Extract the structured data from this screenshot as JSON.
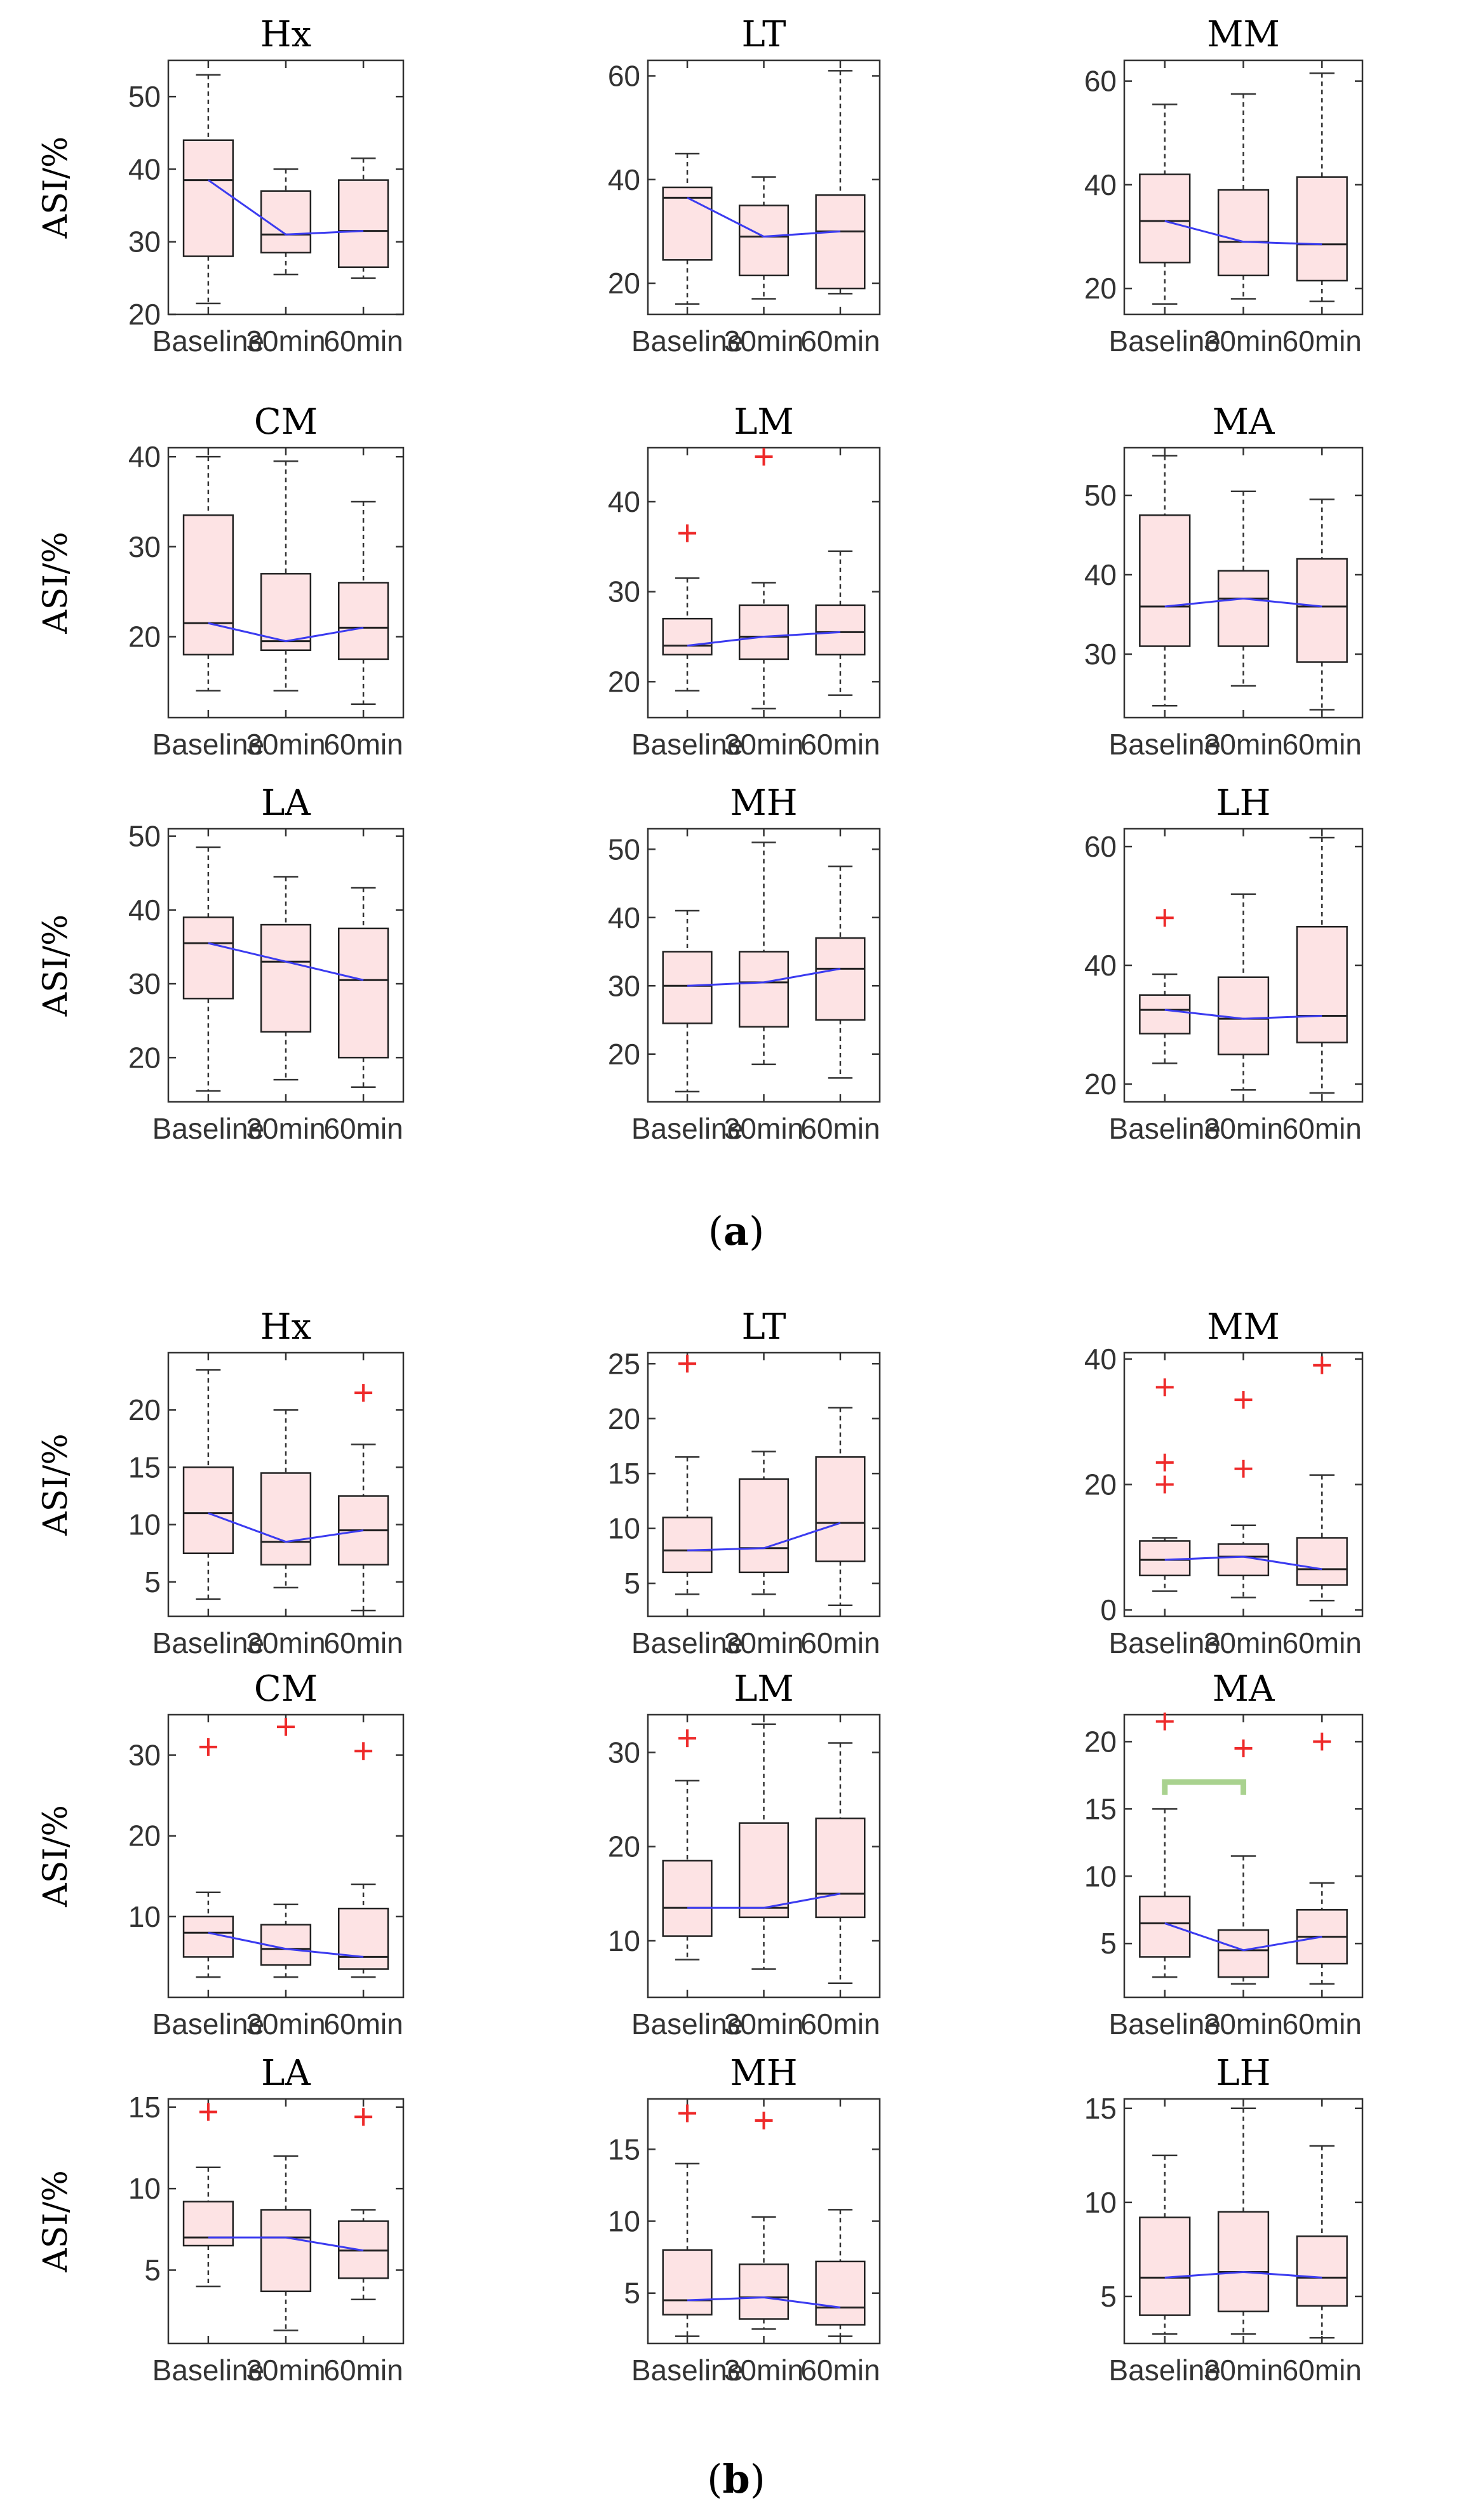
{
  "figure": {
    "caption_a_open": "(",
    "caption_a_letter": "a",
    "caption_a_close": ")",
    "caption_b_open": "(",
    "caption_b_letter": "b",
    "caption_b_close": ")"
  },
  "colors": {
    "box_fill": "#fde3e4",
    "box_edge": "#222222",
    "median_line": "#3b3bf0",
    "outlier": "#ee2a2a",
    "significance": "#a9d28f"
  },
  "chart_data": [
    {
      "type": "box",
      "panel": "a",
      "title": "Hx",
      "ylabel": "ASI/%",
      "categories": [
        "Baseline",
        "30min",
        "60min"
      ],
      "ylim": [
        20,
        55
      ],
      "yticks": [
        20,
        30,
        40,
        50
      ],
      "boxes": [
        {
          "whisker_low": 21.5,
          "q1": 28,
          "median": 38.5,
          "q3": 44,
          "whisker_high": 53,
          "outliers": []
        },
        {
          "whisker_low": 25.5,
          "q1": 28.5,
          "median": 31,
          "q3": 37,
          "whisker_high": 40,
          "outliers": []
        },
        {
          "whisker_low": 25,
          "q1": 26.5,
          "median": 31.5,
          "q3": 38.5,
          "whisker_high": 41.5,
          "outliers": []
        }
      ]
    },
    {
      "type": "box",
      "panel": "a",
      "title": "LT",
      "ylabel": "",
      "categories": [
        "Baseline",
        "30min",
        "60min"
      ],
      "ylim": [
        14,
        63
      ],
      "yticks": [
        20,
        40,
        60
      ],
      "boxes": [
        {
          "whisker_low": 16,
          "q1": 24.5,
          "median": 36.5,
          "q3": 38.5,
          "whisker_high": 45,
          "outliers": []
        },
        {
          "whisker_low": 17,
          "q1": 21.5,
          "median": 29,
          "q3": 35,
          "whisker_high": 40.5,
          "outliers": []
        },
        {
          "whisker_low": 18,
          "q1": 19,
          "median": 30,
          "q3": 37,
          "whisker_high": 61,
          "outliers": []
        }
      ]
    },
    {
      "type": "box",
      "panel": "a",
      "title": "MM",
      "ylabel": "",
      "categories": [
        "Baseline",
        "30min",
        "60min"
      ],
      "ylim": [
        15,
        64
      ],
      "yticks": [
        20,
        40,
        60
      ],
      "boxes": [
        {
          "whisker_low": 17,
          "q1": 25,
          "median": 33,
          "q3": 42,
          "whisker_high": 55.5,
          "outliers": []
        },
        {
          "whisker_low": 18,
          "q1": 22.5,
          "median": 29,
          "q3": 39,
          "whisker_high": 57.5,
          "outliers": []
        },
        {
          "whisker_low": 17.5,
          "q1": 21.5,
          "median": 28.5,
          "q3": 41.5,
          "whisker_high": 61.5,
          "outliers": []
        }
      ]
    },
    {
      "type": "box",
      "panel": "a",
      "title": "CM",
      "ylabel": "ASI/%",
      "categories": [
        "Baseline",
        "30min",
        "60min"
      ],
      "ylim": [
        11,
        41
      ],
      "yticks": [
        20,
        30,
        40
      ],
      "boxes": [
        {
          "whisker_low": 14,
          "q1": 18,
          "median": 21.5,
          "q3": 33.5,
          "whisker_high": 40,
          "outliers": []
        },
        {
          "whisker_low": 14,
          "q1": 18.5,
          "median": 19.5,
          "q3": 27,
          "whisker_high": 39.5,
          "outliers": []
        },
        {
          "whisker_low": 12.5,
          "q1": 17.5,
          "median": 21,
          "q3": 26,
          "whisker_high": 35,
          "outliers": []
        }
      ]
    },
    {
      "type": "box",
      "panel": "a",
      "title": "LM",
      "ylabel": "",
      "categories": [
        "Baseline",
        "30min",
        "60min"
      ],
      "ylim": [
        16,
        46
      ],
      "yticks": [
        20,
        30,
        40
      ],
      "boxes": [
        {
          "whisker_low": 19,
          "q1": 23,
          "median": 24,
          "q3": 27,
          "whisker_high": 31.5,
          "outliers": [
            36.5
          ]
        },
        {
          "whisker_low": 17,
          "q1": 22.5,
          "median": 25,
          "q3": 28.5,
          "whisker_high": 31,
          "outliers": [
            45
          ]
        },
        {
          "whisker_low": 18.5,
          "q1": 23,
          "median": 25.5,
          "q3": 28.5,
          "whisker_high": 34.5,
          "outliers": []
        }
      ]
    },
    {
      "type": "box",
      "panel": "a",
      "title": "MA",
      "ylabel": "",
      "categories": [
        "Baseline",
        "30min",
        "60min"
      ],
      "ylim": [
        22,
        56
      ],
      "yticks": [
        30,
        40,
        50
      ],
      "boxes": [
        {
          "whisker_low": 23.5,
          "q1": 31,
          "median": 36,
          "q3": 47.5,
          "whisker_high": 55,
          "outliers": []
        },
        {
          "whisker_low": 26,
          "q1": 31,
          "median": 37,
          "q3": 40.5,
          "whisker_high": 50.5,
          "outliers": []
        },
        {
          "whisker_low": 23,
          "q1": 29,
          "median": 36,
          "q3": 42,
          "whisker_high": 49.5,
          "outliers": []
        }
      ]
    },
    {
      "type": "box",
      "panel": "a",
      "title": "LA",
      "ylabel": "ASI/%",
      "categories": [
        "Baseline",
        "30min",
        "60min"
      ],
      "ylim": [
        14,
        51
      ],
      "yticks": [
        20,
        30,
        40,
        50
      ],
      "boxes": [
        {
          "whisker_low": 15.5,
          "q1": 28,
          "median": 35.5,
          "q3": 39,
          "whisker_high": 48.5,
          "outliers": []
        },
        {
          "whisker_low": 17,
          "q1": 23.5,
          "median": 33,
          "q3": 38,
          "whisker_high": 44.5,
          "outliers": []
        },
        {
          "whisker_low": 16,
          "q1": 20,
          "median": 30.5,
          "q3": 37.5,
          "whisker_high": 43,
          "outliers": []
        }
      ]
    },
    {
      "type": "box",
      "panel": "a",
      "title": "MH",
      "ylabel": "",
      "categories": [
        "Baseline",
        "30min",
        "60min"
      ],
      "ylim": [
        13,
        53
      ],
      "yticks": [
        20,
        30,
        40,
        50
      ],
      "boxes": [
        {
          "whisker_low": 14.5,
          "q1": 24.5,
          "median": 30,
          "q3": 35,
          "whisker_high": 41,
          "outliers": []
        },
        {
          "whisker_low": 18.5,
          "q1": 24,
          "median": 30.5,
          "q3": 35,
          "whisker_high": 51,
          "outliers": []
        },
        {
          "whisker_low": 16.5,
          "q1": 25,
          "median": 32.5,
          "q3": 37,
          "whisker_high": 47.5,
          "outliers": []
        }
      ]
    },
    {
      "type": "box",
      "panel": "a",
      "title": "LH",
      "ylabel": "",
      "categories": [
        "Baseline",
        "30min",
        "60min"
      ],
      "ylim": [
        17,
        63
      ],
      "yticks": [
        20,
        40,
        60
      ],
      "boxes": [
        {
          "whisker_low": 23.5,
          "q1": 28.5,
          "median": 32.5,
          "q3": 35,
          "whisker_high": 38.5,
          "outliers": [
            48
          ]
        },
        {
          "whisker_low": 19,
          "q1": 25,
          "median": 31,
          "q3": 38,
          "whisker_high": 52,
          "outliers": []
        },
        {
          "whisker_low": 18.5,
          "q1": 27,
          "median": 31.5,
          "q3": 46.5,
          "whisker_high": 61.5,
          "outliers": []
        }
      ]
    },
    {
      "type": "box",
      "panel": "b",
      "title": "Hx",
      "ylabel": "ASI/%",
      "categories": [
        "Baseline",
        "30min",
        "60min"
      ],
      "ylim": [
        2,
        25
      ],
      "yticks": [
        5,
        10,
        15,
        20
      ],
      "boxes": [
        {
          "whisker_low": 3.5,
          "q1": 7.5,
          "median": 11,
          "q3": 15,
          "whisker_high": 23.5,
          "outliers": []
        },
        {
          "whisker_low": 4.5,
          "q1": 6.5,
          "median": 8.5,
          "q3": 14.5,
          "whisker_high": 20,
          "outliers": []
        },
        {
          "whisker_low": 2.5,
          "q1": 6.5,
          "median": 9.5,
          "q3": 12.5,
          "whisker_high": 17,
          "outliers": [
            21.5
          ]
        }
      ]
    },
    {
      "type": "box",
      "panel": "b",
      "title": "LT",
      "ylabel": "",
      "categories": [
        "Baseline",
        "30min",
        "60min"
      ],
      "ylim": [
        2,
        26
      ],
      "yticks": [
        5,
        10,
        15,
        20,
        25
      ],
      "boxes": [
        {
          "whisker_low": 4,
          "q1": 6,
          "median": 8,
          "q3": 11,
          "whisker_high": 16.5,
          "outliers": [
            25
          ]
        },
        {
          "whisker_low": 4,
          "q1": 6,
          "median": 8.2,
          "q3": 14.5,
          "whisker_high": 17,
          "outliers": []
        },
        {
          "whisker_low": 3,
          "q1": 7,
          "median": 10.5,
          "q3": 16.5,
          "whisker_high": 21,
          "outliers": []
        }
      ]
    },
    {
      "type": "box",
      "panel": "b",
      "title": "MM",
      "ylabel": "",
      "categories": [
        "Baseline",
        "30min",
        "60min"
      ],
      "ylim": [
        -1,
        41
      ],
      "yticks": [
        0,
        20,
        40
      ],
      "boxes": [
        {
          "whisker_low": 3,
          "q1": 5.5,
          "median": 8,
          "q3": 11,
          "whisker_high": 11.5,
          "outliers": [
            20,
            23.5,
            35.5
          ]
        },
        {
          "whisker_low": 2,
          "q1": 5.5,
          "median": 8.5,
          "q3": 10.5,
          "whisker_high": 13.5,
          "outliers": [
            22.5,
            33.5
          ]
        },
        {
          "whisker_low": 1.5,
          "q1": 4,
          "median": 6.5,
          "q3": 11.5,
          "whisker_high": 21.5,
          "outliers": [
            39
          ]
        }
      ]
    },
    {
      "type": "box",
      "panel": "b",
      "title": "CM",
      "ylabel": "ASI/%",
      "categories": [
        "Baseline",
        "30min",
        "60min"
      ],
      "ylim": [
        0,
        35
      ],
      "yticks": [
        10,
        20,
        30
      ],
      "boxes": [
        {
          "whisker_low": 2.5,
          "q1": 5,
          "median": 8,
          "q3": 10,
          "whisker_high": 13,
          "outliers": [
            31
          ]
        },
        {
          "whisker_low": 2.5,
          "q1": 4,
          "median": 6,
          "q3": 9,
          "whisker_high": 11.5,
          "outliers": [
            33.5
          ]
        },
        {
          "whisker_low": 2.5,
          "q1": 3.5,
          "median": 5,
          "q3": 11,
          "whisker_high": 14,
          "outliers": [
            30.5
          ]
        }
      ]
    },
    {
      "type": "box",
      "panel": "b",
      "title": "LM",
      "ylabel": "",
      "categories": [
        "Baseline",
        "30min",
        "60min"
      ],
      "ylim": [
        4,
        34
      ],
      "yticks": [
        10,
        20,
        30
      ],
      "boxes": [
        {
          "whisker_low": 8,
          "q1": 10.5,
          "median": 13.5,
          "q3": 18.5,
          "whisker_high": 27,
          "outliers": [
            31.5
          ]
        },
        {
          "whisker_low": 7,
          "q1": 12.5,
          "median": 13.5,
          "q3": 22.5,
          "whisker_high": 33,
          "outliers": []
        },
        {
          "whisker_low": 5.5,
          "q1": 12.5,
          "median": 15,
          "q3": 23,
          "whisker_high": 31,
          "outliers": []
        }
      ]
    },
    {
      "type": "box",
      "panel": "b",
      "title": "MA",
      "ylabel": "",
      "categories": [
        "Baseline",
        "30min",
        "60min"
      ],
      "ylim": [
        1,
        22
      ],
      "yticks": [
        5,
        10,
        15,
        20
      ],
      "boxes": [
        {
          "whisker_low": 2.5,
          "q1": 4,
          "median": 6.5,
          "q3": 8.5,
          "whisker_high": 15,
          "outliers": [
            21.5
          ]
        },
        {
          "whisker_low": 2,
          "q1": 2.5,
          "median": 4.5,
          "q3": 6,
          "whisker_high": 11.5,
          "outliers": [
            19.5
          ]
        },
        {
          "whisker_low": 2,
          "q1": 3.5,
          "median": 5.5,
          "q3": 7.5,
          "whisker_high": 9.5,
          "outliers": [
            20
          ]
        }
      ],
      "significance": {
        "from": "Baseline",
        "to": "30min",
        "y": 17
      }
    },
    {
      "type": "box",
      "panel": "b",
      "title": "LA",
      "ylabel": "ASI/%",
      "categories": [
        "Baseline",
        "30min",
        "60min"
      ],
      "ylim": [
        0.5,
        15.5
      ],
      "yticks": [
        5,
        10,
        15
      ],
      "boxes": [
        {
          "whisker_low": 4,
          "q1": 6.5,
          "median": 7,
          "q3": 9.2,
          "whisker_high": 11.3,
          "outliers": [
            14.7
          ]
        },
        {
          "whisker_low": 1.3,
          "q1": 3.7,
          "median": 7,
          "q3": 8.7,
          "whisker_high": 12,
          "outliers": []
        },
        {
          "whisker_low": 3.2,
          "q1": 4.5,
          "median": 6.2,
          "q3": 8,
          "whisker_high": 8.7,
          "outliers": [
            14.4
          ]
        }
      ]
    },
    {
      "type": "box",
      "panel": "b",
      "title": "MH",
      "ylabel": "",
      "categories": [
        "Baseline",
        "30min",
        "60min"
      ],
      "ylim": [
        1.5,
        18.5
      ],
      "yticks": [
        5,
        10,
        15
      ],
      "boxes": [
        {
          "whisker_low": 2,
          "q1": 3.5,
          "median": 4.5,
          "q3": 8,
          "whisker_high": 14,
          "outliers": [
            17.5
          ]
        },
        {
          "whisker_low": 2.5,
          "q1": 3.2,
          "median": 4.7,
          "q3": 7,
          "whisker_high": 10.3,
          "outliers": [
            17
          ]
        },
        {
          "whisker_low": 2,
          "q1": 2.8,
          "median": 4,
          "q3": 7.2,
          "whisker_high": 10.8,
          "outliers": []
        }
      ]
    },
    {
      "type": "box",
      "panel": "b",
      "title": "LH",
      "ylabel": "",
      "categories": [
        "Baseline",
        "30min",
        "60min"
      ],
      "ylim": [
        2.5,
        15.5
      ],
      "yticks": [
        5,
        10,
        15
      ],
      "boxes": [
        {
          "whisker_low": 3,
          "q1": 4,
          "median": 6,
          "q3": 9.2,
          "whisker_high": 12.5,
          "outliers": []
        },
        {
          "whisker_low": 3,
          "q1": 4.2,
          "median": 6.3,
          "q3": 9.5,
          "whisker_high": 15,
          "outliers": []
        },
        {
          "whisker_low": 2.8,
          "q1": 4.5,
          "median": 6,
          "q3": 8.2,
          "whisker_high": 13,
          "outliers": []
        }
      ]
    }
  ]
}
